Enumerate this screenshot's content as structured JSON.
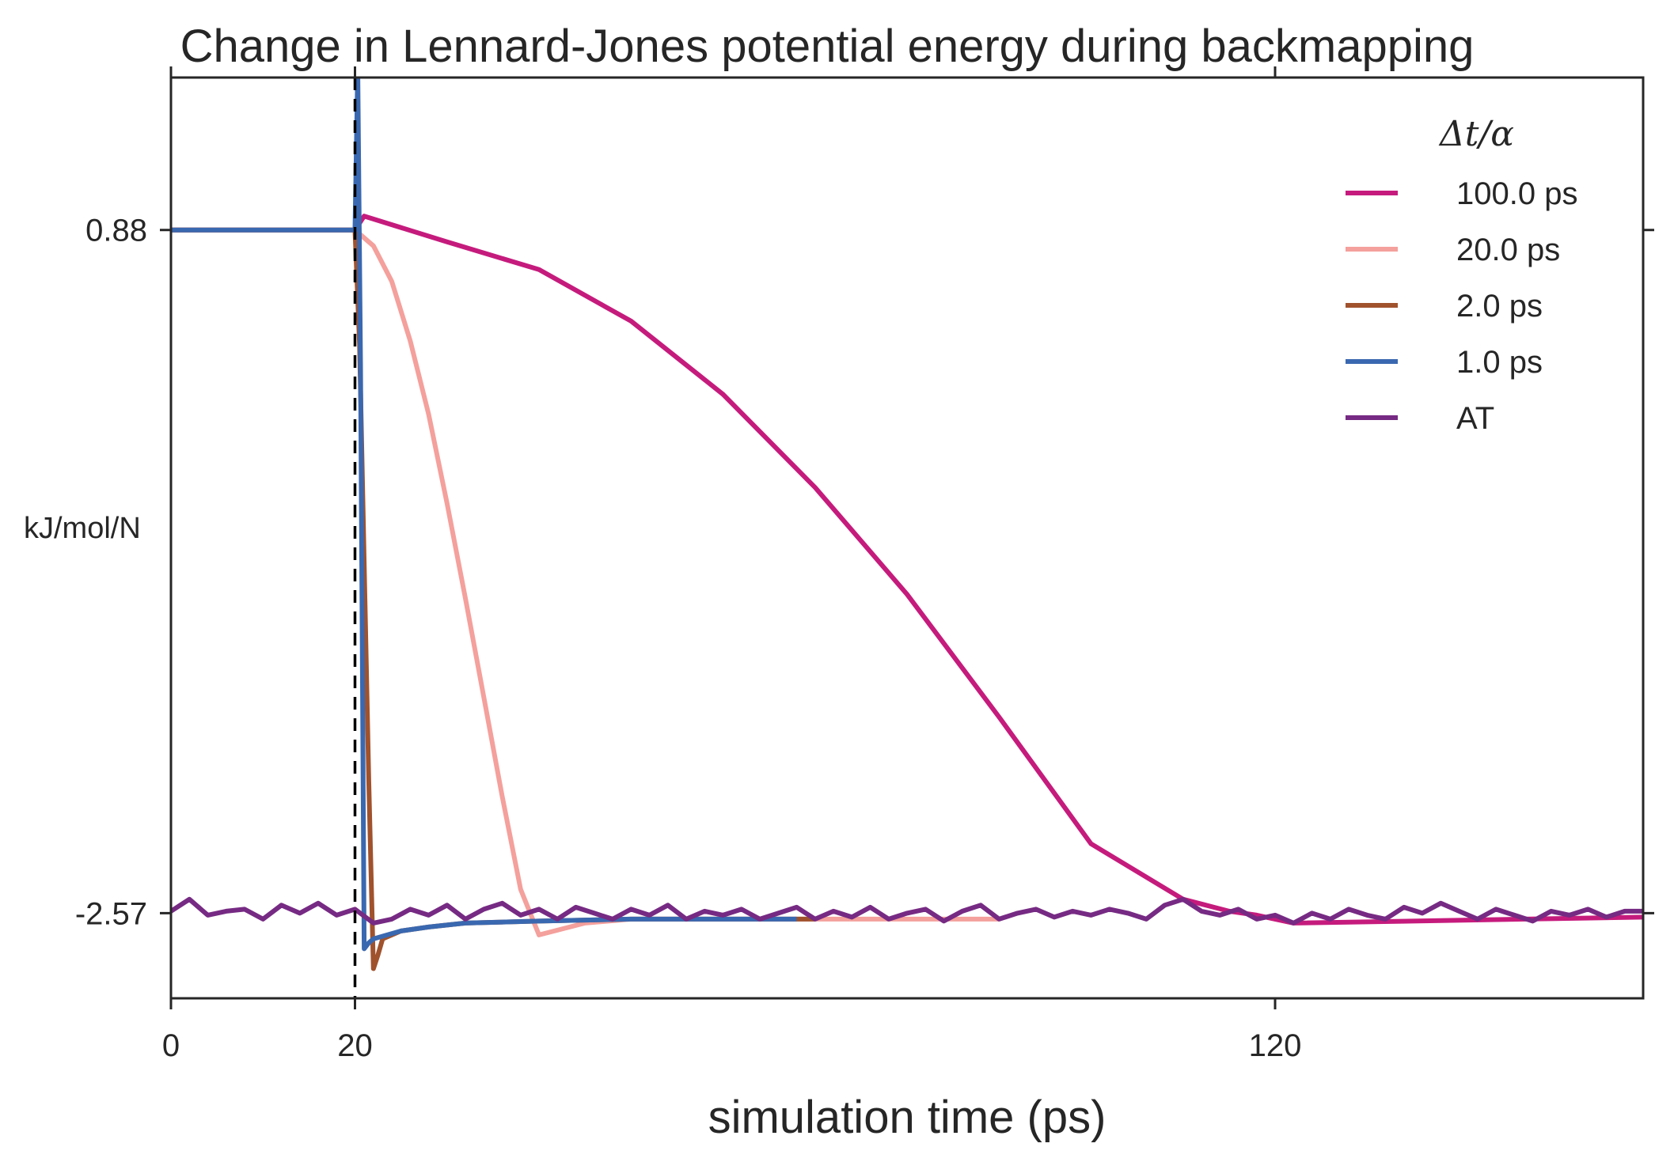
{
  "chart_data": {
    "type": "line",
    "title": "Change in Lennard-Jones potential energy during backmapping",
    "xlabel": "simulation time (ps)",
    "ylabel": "kJ/mol/N",
    "xlim": [
      0,
      160
    ],
    "ylim": [
      -3.0,
      1.65
    ],
    "xticks": [
      {
        "value": 0,
        "label": "0"
      },
      {
        "value": 20,
        "label": "20"
      },
      {
        "value": 120,
        "label": "120"
      }
    ],
    "yticks": [
      {
        "value": 0.88,
        "label": "0.88"
      },
      {
        "value": -2.57,
        "label": "-2.57"
      }
    ],
    "vline": {
      "x": 20,
      "style": "dashed",
      "color": "#000000"
    },
    "grid": false,
    "legend": {
      "title": "Δt/α",
      "placement": "top-right"
    },
    "series": [
      {
        "name": "100.0 ps",
        "color": "#c51b7d",
        "x": [
          0,
          1,
          20,
          21,
          30,
          40,
          50,
          60,
          70,
          80,
          90,
          100,
          110,
          115,
          118,
          120,
          122,
          160
        ],
        "y": [
          0.88,
          0.88,
          0.88,
          0.95,
          0.82,
          0.68,
          0.42,
          0.05,
          -0.42,
          -0.96,
          -1.58,
          -2.22,
          -2.5,
          -2.56,
          -2.58,
          -2.6,
          -2.62,
          -2.59
        ]
      },
      {
        "name": "20.0 ps",
        "color": "#f4a09c",
        "x": [
          0,
          1,
          20,
          22,
          24,
          26,
          28,
          30,
          32,
          34,
          36,
          38,
          40,
          45,
          50,
          60,
          70,
          80,
          90
        ],
        "y": [
          0.88,
          0.88,
          0.88,
          0.8,
          0.62,
          0.32,
          -0.05,
          -0.5,
          -0.98,
          -1.48,
          -1.98,
          -2.45,
          -2.68,
          -2.62,
          -2.6,
          -2.6,
          -2.6,
          -2.6,
          -2.6
        ]
      },
      {
        "name": "2.0 ps",
        "color": "#a0522d",
        "x": [
          0,
          1,
          20,
          20.5,
          21,
          21.5,
          22,
          22.5,
          23,
          25,
          28,
          32,
          40,
          50,
          60,
          70
        ],
        "y": [
          0.88,
          0.88,
          0.88,
          0.3,
          -0.8,
          -1.9,
          -2.85,
          -2.78,
          -2.7,
          -2.66,
          -2.64,
          -2.62,
          -2.61,
          -2.6,
          -2.6,
          -2.6
        ]
      },
      {
        "name": "1.0 ps",
        "color": "#3a68b0",
        "x": [
          0,
          1,
          20,
          20.3,
          20.6,
          21,
          21.5,
          22,
          25,
          28,
          32,
          40,
          50,
          60,
          68
        ],
        "y": [
          0.88,
          0.88,
          0.88,
          1.7,
          0.2,
          -2.75,
          -2.72,
          -2.7,
          -2.66,
          -2.64,
          -2.62,
          -2.61,
          -2.6,
          -2.6,
          -2.6
        ]
      },
      {
        "name": "AT",
        "color": "#762a83",
        "x": [
          0,
          2,
          4,
          6,
          8,
          10,
          12,
          14,
          16,
          18,
          20,
          22,
          24,
          26,
          28,
          30,
          32,
          34,
          36,
          38,
          40,
          42,
          44,
          46,
          48,
          50,
          52,
          54,
          56,
          58,
          60,
          62,
          64,
          66,
          68,
          70,
          72,
          74,
          76,
          78,
          80,
          82,
          84,
          86,
          88,
          90,
          92,
          94,
          96,
          98,
          100,
          102,
          104,
          106,
          108,
          110,
          112,
          114,
          116,
          118,
          120,
          122,
          124,
          126,
          128,
          130,
          132,
          134,
          136,
          138,
          140,
          142,
          144,
          146,
          148,
          150,
          152,
          154,
          156,
          158,
          160
        ],
        "y": [
          -2.56,
          -2.5,
          -2.58,
          -2.56,
          -2.55,
          -2.6,
          -2.53,
          -2.57,
          -2.52,
          -2.58,
          -2.55,
          -2.62,
          -2.6,
          -2.55,
          -2.58,
          -2.53,
          -2.6,
          -2.55,
          -2.52,
          -2.58,
          -2.55,
          -2.6,
          -2.54,
          -2.57,
          -2.6,
          -2.55,
          -2.58,
          -2.53,
          -2.6,
          -2.56,
          -2.58,
          -2.55,
          -2.6,
          -2.57,
          -2.54,
          -2.6,
          -2.56,
          -2.59,
          -2.54,
          -2.6,
          -2.57,
          -2.55,
          -2.61,
          -2.56,
          -2.53,
          -2.6,
          -2.57,
          -2.55,
          -2.59,
          -2.56,
          -2.58,
          -2.55,
          -2.57,
          -2.6,
          -2.53,
          -2.5,
          -2.56,
          -2.58,
          -2.55,
          -2.6,
          -2.58,
          -2.62,
          -2.57,
          -2.6,
          -2.55,
          -2.58,
          -2.6,
          -2.54,
          -2.57,
          -2.52,
          -2.56,
          -2.6,
          -2.55,
          -2.58,
          -2.61,
          -2.56,
          -2.58,
          -2.55,
          -2.59,
          -2.56,
          -2.56
        ]
      }
    ]
  }
}
